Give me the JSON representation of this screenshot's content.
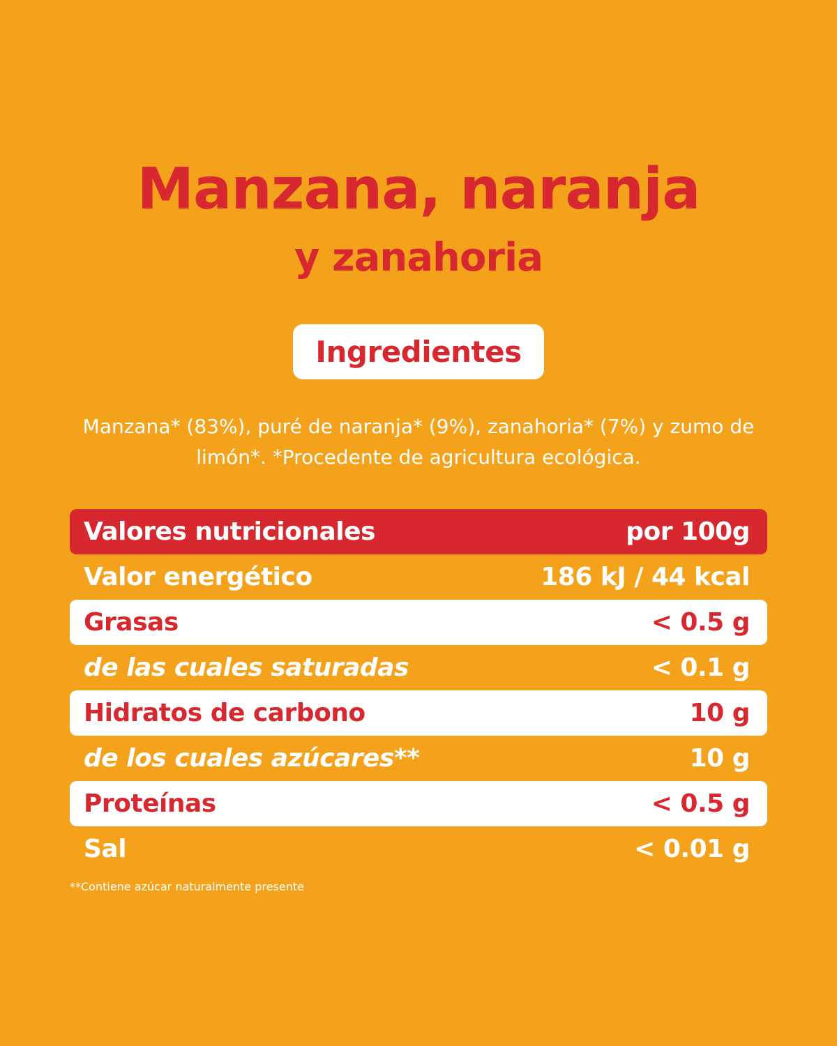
{
  "header": {
    "title": "Manzana, naranja",
    "subtitle": "y zanahoria"
  },
  "ingredients": {
    "heading": "Ingredientes",
    "text": "Manzana* (83%), puré de naranja* (9%), zanahoria* (7%) y zumo de limón*. *Procedente de agricultura ecológica."
  },
  "table": {
    "header": [
      "Valores nutricionales",
      "por 100g"
    ],
    "rows": [
      [
        "Valor energético",
        "186 kJ / 44 kcal"
      ],
      [
        "Grasas",
        "< 0.5 g"
      ],
      [
        "de las cuales saturadas",
        "< 0.1 g"
      ],
      [
        "Hidratos de carbono",
        "10 g"
      ],
      [
        "de los cuales azúcares**",
        "10 g"
      ],
      [
        "Proteínas",
        "< 0.5 g"
      ],
      [
        "Sal",
        "< 0.01 g"
      ]
    ]
  },
  "footnote": "**Contiene azúcar naturalmente presente"
}
